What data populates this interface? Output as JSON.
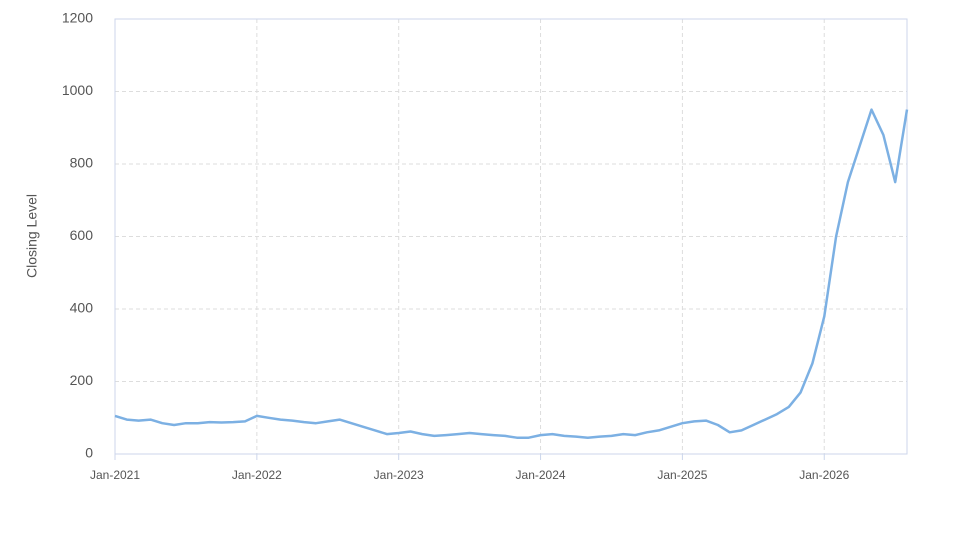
{
  "chart_data": {
    "type": "line",
    "y_label": "Closing Level",
    "color": "#7cb0e3",
    "x": [
      "2021-01",
      "2021-02",
      "2021-03",
      "2021-04",
      "2021-05",
      "2021-06",
      "2021-07",
      "2021-08",
      "2021-09",
      "2021-10",
      "2021-11",
      "2021-12",
      "2022-01",
      "2022-02",
      "2022-03",
      "2022-04",
      "2022-05",
      "2022-06",
      "2022-07",
      "2022-08",
      "2022-09",
      "2022-10",
      "2022-11",
      "2022-12",
      "2023-01",
      "2023-02",
      "2023-03",
      "2023-04",
      "2023-05",
      "2023-06",
      "2023-07",
      "2023-08",
      "2023-09",
      "2023-10",
      "2023-11",
      "2023-12",
      "2024-01",
      "2024-02",
      "2024-03",
      "2024-04",
      "2024-05",
      "2024-06",
      "2024-07",
      "2024-08",
      "2024-09",
      "2024-10",
      "2024-11",
      "2024-12",
      "2025-01",
      "2025-02",
      "2025-03",
      "2025-04",
      "2025-05",
      "2025-06",
      "2025-07",
      "2025-08",
      "2025-09",
      "2025-10",
      "2025-11",
      "2025-12",
      "2026-01",
      "2026-02",
      "2026-03",
      "2026-04",
      "2026-05",
      "2026-06",
      "2026-07",
      "2026-08"
    ],
    "values": [
      105,
      95,
      92,
      95,
      85,
      80,
      85,
      85,
      88,
      87,
      88,
      90,
      105,
      100,
      95,
      92,
      88,
      85,
      90,
      95,
      85,
      75,
      65,
      55,
      58,
      62,
      55,
      50,
      52,
      55,
      58,
      55,
      52,
      50,
      45,
      45,
      52,
      55,
      50,
      48,
      45,
      48,
      50,
      55,
      52,
      60,
      65,
      75,
      85,
      90,
      92,
      80,
      60,
      65,
      80,
      95,
      110,
      130,
      170,
      250,
      380,
      600,
      750,
      850,
      950,
      880,
      750,
      950
    ],
    "xlim": [
      "2021-01",
      "2026-08"
    ],
    "xticks": [
      {
        "value": "2021-01",
        "label": "Jan-2021"
      },
      {
        "value": "2022-01",
        "label": "Jan-2022"
      },
      {
        "value": "2023-01",
        "label": "Jan-2023"
      },
      {
        "value": "2024-01",
        "label": "Jan-2024"
      },
      {
        "value": "2025-01",
        "label": "Jan-2025"
      },
      {
        "value": "2026-01",
        "label": "Jan-2026"
      }
    ],
    "ylim": [
      0,
      1200
    ],
    "yticks": [
      0,
      200,
      400,
      600,
      800,
      1000,
      1200
    ],
    "grid": true
  }
}
